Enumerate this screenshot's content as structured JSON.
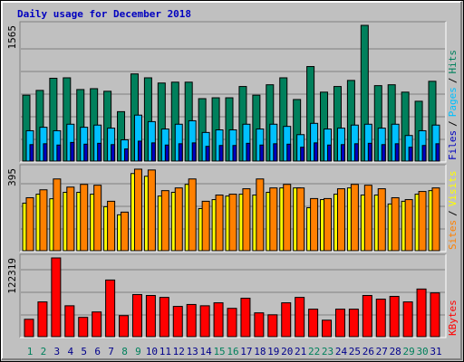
{
  "chart_data": {
    "type": "bar",
    "title": "Daily usage for December 2018",
    "legend_separator": "/",
    "categories": [
      "1",
      "2",
      "3",
      "4",
      "5",
      "6",
      "7",
      "8",
      "9",
      "10",
      "11",
      "12",
      "13",
      "14",
      "15",
      "16",
      "17",
      "18",
      "19",
      "20",
      "21",
      "22",
      "23",
      "24",
      "25",
      "26",
      "27",
      "28",
      "29",
      "30",
      "31"
    ],
    "category_colors": [
      "#00805c",
      "#00805c",
      "#00008b",
      "#00008b",
      "#00008b",
      "#00008b",
      "#00008b",
      "#00805c",
      "#00805c",
      "#00008b",
      "#00008b",
      "#00008b",
      "#00008b",
      "#00008b",
      "#00805c",
      "#00805c",
      "#00008b",
      "#00008b",
      "#00008b",
      "#00008b",
      "#00008b",
      "#00805c",
      "#00805c",
      "#00008b",
      "#00008b",
      "#00008b",
      "#00008b",
      "#00008b",
      "#00805c",
      "#00805c",
      "#00008b"
    ],
    "panels": [
      {
        "ylim": [
          0,
          1565
        ],
        "yticks": [
          1565
        ],
        "series": [
          {
            "name": "Hits",
            "color": "#00805c",
            "values": [
              760,
              815,
              955,
              960,
              825,
              835,
              805,
              570,
              1005,
              960,
              900,
              910,
              910,
              720,
              730,
              730,
              860,
              760,
              880,
              960,
              710,
              1090,
              795,
              860,
              930,
              1565,
              870,
              880,
              795,
              690,
              920
            ]
          },
          {
            "name": "Pages",
            "color": "#00c0ff",
            "values": [
              350,
              390,
              350,
              425,
              390,
              415,
              380,
              245,
              530,
              455,
              370,
              425,
              465,
              330,
              360,
              360,
              425,
              370,
              425,
              400,
              305,
              435,
              370,
              380,
              415,
              425,
              380,
              425,
              295,
              350,
              415
            ]
          },
          {
            "name": "Files",
            "color": "#0000c0",
            "values": [
              190,
              200,
              185,
              215,
              195,
              205,
              190,
              140,
              230,
              210,
              185,
              200,
              210,
              170,
              180,
              180,
              205,
              185,
              200,
              195,
              160,
              210,
              185,
              190,
              200,
              205,
              190,
              200,
              160,
              180,
              200
            ]
          }
        ],
        "legend_order": [
          2,
          1,
          0
        ]
      },
      {
        "ylim": [
          0,
          395
        ],
        "yticks": [
          395
        ],
        "series": [
          {
            "name": "Visits",
            "color": "#ffff00",
            "values": [
              228,
              271,
              249,
              280,
              280,
              271,
              211,
              172,
              370,
              357,
              262,
              280,
              318,
              202,
              245,
              262,
              271,
              267,
              280,
              301,
              301,
              206,
              245,
              271,
              301,
              267,
              267,
              224,
              237,
              271,
              288
            ]
          },
          {
            "name": "Sites",
            "color": "#ff8000",
            "values": [
              254,
              292,
              344,
              305,
              318,
              314,
              237,
              185,
              391,
              387,
              288,
              301,
              344,
              237,
              267,
              271,
              297,
              344,
              301,
              318,
              301,
              250,
              250,
              297,
              318,
              314,
              297,
              254,
              245,
              284,
              301
            ]
          }
        ],
        "legend_order": [
          1,
          0
        ]
      },
      {
        "ylim": [
          0,
          122319
        ],
        "yticks": [
          122319
        ],
        "series": [
          {
            "name": "KBytes",
            "color": "#ff0000",
            "values": [
              27000,
              54000,
              122319,
              48000,
              30000,
              38400,
              88000,
              32700,
              65400,
              64000,
              61000,
              47000,
              50000,
              48000,
              52600,
              44000,
              59700,
              37000,
              34000,
              52600,
              61000,
              42700,
              25600,
              42700,
              42700,
              64000,
              58300,
              62600,
              54000,
              74000,
              68000
            ]
          }
        ],
        "legend_order": [
          0
        ]
      }
    ]
  }
}
